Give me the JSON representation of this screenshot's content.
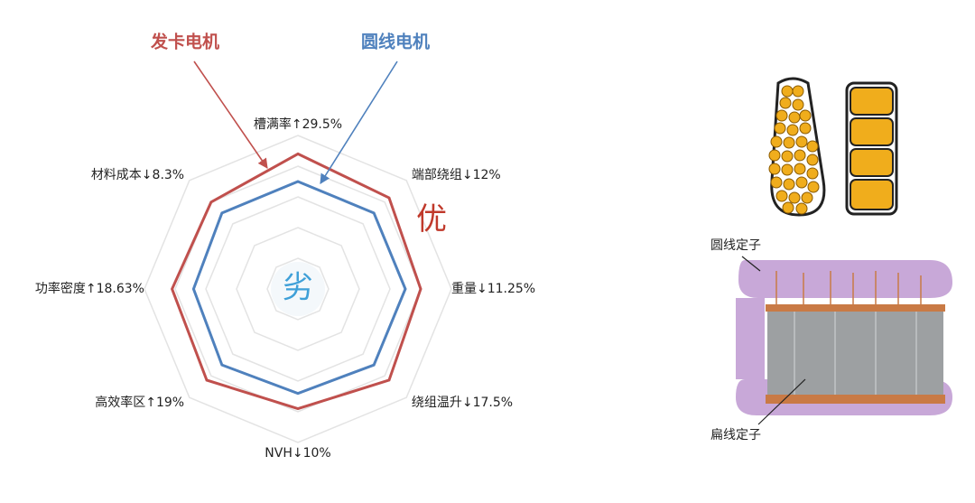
{
  "chart_data": {
    "type": "radar",
    "categories": [
      "槽满率↑29.5%",
      "端部绕组↓12%",
      "重量↓11.25%",
      "绕组温升↓17.5%",
      "NVH↓10%",
      "高效率区↑19%",
      "功率密度↑18.63%",
      "材料成本↓8.3%"
    ],
    "series": [
      {
        "name": "发卡电机",
        "color": "#c0504d",
        "values": [
          4.4,
          4.2,
          4.0,
          4.2,
          3.9,
          4.2,
          4.1,
          4.0
        ]
      },
      {
        "name": "圆线电机",
        "color": "#4f81bd",
        "values": [
          3.5,
          3.5,
          3.5,
          3.5,
          3.4,
          3.5,
          3.4,
          3.5
        ]
      }
    ],
    "ylim": [
      0,
      5
    ],
    "yticks": [
      1,
      2,
      3,
      4,
      5
    ],
    "grid": true,
    "annotations": [
      "优",
      "劣",
      "圆线定子",
      "扁线定子"
    ]
  }
}
